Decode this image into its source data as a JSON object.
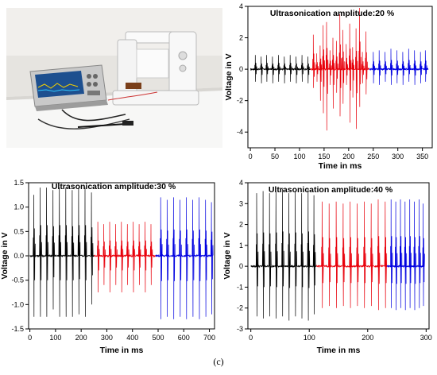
{
  "caption": "(c)",
  "chart_data": [
    {
      "type": "line",
      "title": "Ultrasonication amplitude:20 %",
      "xlabel": "Time in ms",
      "ylabel": "Voltage in V",
      "xlim": [
        -5,
        370
      ],
      "ylim": [
        -5,
        4
      ],
      "xticks": [
        0,
        50,
        100,
        150,
        200,
        250,
        300,
        350
      ],
      "yticks": [
        -4,
        -2,
        0,
        2,
        4
      ],
      "series": [
        {
          "color": "#000000",
          "x_range": [
            0,
            122
          ],
          "spike_x": [
            10,
            22,
            33,
            45,
            57,
            69,
            81,
            93,
            105,
            117
          ],
          "spike_up": [
            0.9,
            0.8,
            0.9,
            0.8,
            0.9,
            0.8,
            0.9,
            0.8,
            0.9,
            0.8
          ],
          "spike_down": [
            -0.8,
            -0.9,
            -0.8,
            -0.9,
            -0.8,
            -0.9,
            -0.8,
            -0.9,
            -0.8,
            -0.9
          ]
        },
        {
          "color": "#e8000b",
          "x_range": [
            122,
            242
          ],
          "spike_x": [
            128,
            135,
            142,
            148,
            155,
            162,
            168,
            175,
            182,
            188,
            195,
            202,
            208,
            215,
            222,
            228,
            235
          ],
          "spike_up": [
            2.2,
            1.0,
            1.5,
            2.8,
            3.0,
            1.2,
            2.0,
            1.8,
            3.5,
            2.5,
            1.6,
            2.9,
            1.4,
            2.6,
            3.9,
            1.1,
            2.4
          ],
          "spike_down": [
            -1.2,
            -0.8,
            -2.0,
            -2.8,
            -3.9,
            -1.0,
            -2.5,
            -1.5,
            -3.0,
            -2.2,
            -1.0,
            -3.4,
            -1.8,
            -3.8,
            -2.4,
            -0.9,
            -1.6
          ]
        },
        {
          "color": "#0000e0",
          "x_range": [
            242,
            362
          ],
          "spike_x": [
            250,
            262,
            274,
            286,
            298,
            310,
            322,
            334,
            346,
            356
          ],
          "spike_up": [
            1.1,
            1.2,
            1.1,
            1.3,
            1.2,
            1.1,
            1.3,
            1.2,
            1.1,
            1.2
          ],
          "spike_down": [
            -0.9,
            -1.0,
            -0.8,
            -1.0,
            -0.9,
            -1.0,
            -0.8,
            -1.0,
            -0.9,
            -0.8
          ]
        }
      ]
    },
    {
      "type": "line",
      "title": "Ultrasonication amplitude:30 %",
      "xlabel": "Time in ms",
      "ylabel": "Voltage in V",
      "xlim": [
        -5,
        720
      ],
      "ylim": [
        -1.5,
        1.5
      ],
      "xticks": [
        0,
        100,
        200,
        300,
        400,
        500,
        600,
        700
      ],
      "yticks": [
        -1.5,
        -1.0,
        -0.5,
        0.0,
        0.5,
        1.0,
        1.5
      ],
      "series": [
        {
          "color": "#000000",
          "x_range": [
            0,
            250
          ],
          "spike_x": [
            15,
            40,
            65,
            90,
            115,
            140,
            165,
            190,
            215,
            240
          ],
          "spike_up": [
            1.25,
            1.4,
            1.4,
            1.35,
            1.4,
            1.4,
            1.35,
            1.4,
            1.4,
            1.3
          ],
          "spike_down": [
            -1.25,
            -1.25,
            -1.25,
            -1.1,
            -1.25,
            -1.25,
            -1.25,
            -1.2,
            -1.25,
            -1.0
          ]
        },
        {
          "color": "#e8000b",
          "x_range": [
            250,
            490
          ],
          "spike_x": [
            265,
            288,
            311,
            334,
            357,
            380,
            403,
            426,
            449,
            472
          ],
          "spike_up": [
            0.7,
            0.65,
            0.7,
            0.65,
            0.7,
            0.65,
            0.7,
            0.65,
            0.7,
            0.65
          ],
          "spike_down": [
            -0.75,
            -0.6,
            -0.75,
            -0.6,
            -0.75,
            -0.6,
            -0.75,
            -0.6,
            -0.75,
            -0.6
          ]
        },
        {
          "color": "#0000e0",
          "x_range": [
            490,
            715
          ],
          "spike_x": [
            510,
            535,
            560,
            585,
            610,
            635,
            660,
            685,
            708
          ],
          "spike_up": [
            1.2,
            1.15,
            1.2,
            1.15,
            1.2,
            1.15,
            1.2,
            1.15,
            1.1
          ],
          "spike_down": [
            -1.3,
            -1.25,
            -1.3,
            -1.25,
            -1.3,
            -1.25,
            -1.3,
            -1.25,
            -1.2
          ]
        }
      ]
    },
    {
      "type": "line",
      "title": "Ultrasonication amplitude:40 %",
      "xlabel": "Time in ms",
      "ylabel": "Voltage in V",
      "xlim": [
        -5,
        305
      ],
      "ylim": [
        -3,
        4
      ],
      "xticks": [
        0,
        100,
        200,
        300
      ],
      "yticks": [
        -3,
        -2,
        -1,
        0,
        1,
        2,
        3,
        4
      ],
      "series": [
        {
          "color": "#000000",
          "x_range": [
            0,
            112
          ],
          "spike_x": [
            10,
            21,
            32,
            43,
            54,
            65,
            76,
            87,
            98,
            108
          ],
          "spike_up": [
            3.5,
            3.6,
            3.5,
            3.6,
            3.7,
            3.5,
            3.6,
            3.5,
            3.7,
            3.4
          ],
          "spike_down": [
            -2.4,
            -2.5,
            -2.4,
            -2.5,
            -2.4,
            -2.6,
            -2.4,
            -2.5,
            -2.6,
            -2.3
          ]
        },
        {
          "color": "#e8000b",
          "x_range": [
            112,
            233
          ],
          "spike_x": [
            122,
            134,
            146,
            158,
            170,
            182,
            194,
            206,
            218,
            230
          ],
          "spike_up": [
            3.1,
            3.0,
            3.1,
            3.0,
            3.1,
            3.0,
            3.1,
            3.0,
            3.2,
            3.1
          ],
          "spike_down": [
            -2.0,
            -1.9,
            -2.0,
            -1.9,
            -2.0,
            -1.9,
            -2.0,
            -1.9,
            -2.1,
            -2.0
          ]
        },
        {
          "color": "#0000e0",
          "x_range": [
            233,
            297
          ],
          "spike_x": [
            240,
            248,
            256,
            264,
            272,
            280,
            288,
            295
          ],
          "spike_up": [
            3.2,
            3.1,
            3.2,
            3.1,
            3.2,
            3.1,
            3.2,
            3.0
          ],
          "spike_down": [
            -2.0,
            -2.1,
            -2.0,
            -2.1,
            -2.0,
            -2.1,
            -2.0,
            -1.9
          ]
        }
      ]
    }
  ]
}
